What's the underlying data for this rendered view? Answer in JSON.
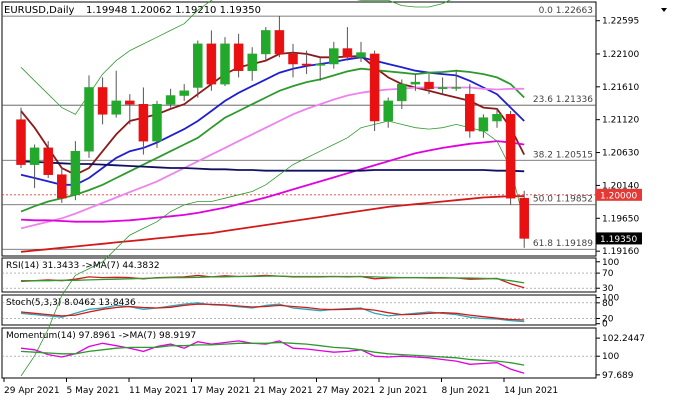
{
  "header": {
    "symbol": "EURUSD,Daily",
    "ohlc": "1.19948 1.20062 1.19210 1.19350"
  },
  "chart_data": {
    "type": "candlestick",
    "price_axis": {
      "range": [
        1.19088,
        1.22874
      ],
      "ticks": [
        "1.22595",
        "1.22100",
        "1.21610",
        "1.21120",
        "1.20630",
        "1.20140",
        "1.19650",
        "1.19160"
      ]
    },
    "date_labels": [
      "29 Apr 2021",
      "5 May 2021",
      "11 May 2021",
      "17 May 2021",
      "21 May 2021",
      "27 May 2021",
      "2 Jun 2021",
      "8 Jun 2021",
      "14 Jun 2021"
    ],
    "price_tags": [
      {
        "label": "1.20000",
        "value": 1.2,
        "color": "#e53935"
      },
      {
        "label": "1.19350",
        "value": 1.1935,
        "color": "#000000"
      }
    ],
    "fibonacci": [
      {
        "label": "0.0 1.22663",
        "value": 1.22663
      },
      {
        "label": "23.6 1.21336",
        "value": 1.21336
      },
      {
        "label": "38.2 1.20515",
        "value": 1.20515
      },
      {
        "label": "50.0 1.19852",
        "value": 1.19852
      },
      {
        "label": "61.8 1.19189",
        "value": 1.19189
      }
    ],
    "candles": [
      {
        "o": 1.2112,
        "h": 1.213,
        "l": 1.204,
        "c": 1.2045
      },
      {
        "o": 1.2045,
        "h": 1.2075,
        "l": 1.201,
        "c": 1.207
      },
      {
        "o": 1.207,
        "h": 1.208,
        "l": 1.2025,
        "c": 1.203
      },
      {
        "o": 1.203,
        "h": 1.204,
        "l": 1.1988,
        "c": 1.1995
      },
      {
        "o": 1.2,
        "h": 1.208,
        "l": 1.1992,
        "c": 1.2065
      },
      {
        "o": 1.2065,
        "h": 1.2178,
        "l": 1.2055,
        "c": 1.216
      },
      {
        "o": 1.216,
        "h": 1.2175,
        "l": 1.2105,
        "c": 1.212
      },
      {
        "o": 1.212,
        "h": 1.2185,
        "l": 1.2115,
        "c": 1.214
      },
      {
        "o": 1.214,
        "h": 1.215,
        "l": 1.2105,
        "c": 1.2135
      },
      {
        "o": 1.2135,
        "h": 1.216,
        "l": 1.206,
        "c": 1.208
      },
      {
        "o": 1.208,
        "h": 1.214,
        "l": 1.207,
        "c": 1.2135
      },
      {
        "o": 1.2135,
        "h": 1.2158,
        "l": 1.213,
        "c": 1.2148
      },
      {
        "o": 1.2148,
        "h": 1.2165,
        "l": 1.214,
        "c": 1.2155
      },
      {
        "o": 1.216,
        "h": 1.223,
        "l": 1.2145,
        "c": 1.2225
      },
      {
        "o": 1.2225,
        "h": 1.2245,
        "l": 1.2155,
        "c": 1.2165
      },
      {
        "o": 1.2165,
        "h": 1.2235,
        "l": 1.2162,
        "c": 1.2225
      },
      {
        "o": 1.2225,
        "h": 1.224,
        "l": 1.2175,
        "c": 1.2185
      },
      {
        "o": 1.2185,
        "h": 1.222,
        "l": 1.217,
        "c": 1.221
      },
      {
        "o": 1.221,
        "h": 1.225,
        "l": 1.22,
        "c": 1.2245
      },
      {
        "o": 1.2245,
        "h": 1.2266,
        "l": 1.2205,
        "c": 1.221
      },
      {
        "o": 1.221,
        "h": 1.2225,
        "l": 1.2175,
        "c": 1.2195
      },
      {
        "o": 1.2195,
        "h": 1.2215,
        "l": 1.218,
        "c": 1.2193
      },
      {
        "o": 1.2193,
        "h": 1.2205,
        "l": 1.217,
        "c": 1.2195
      },
      {
        "o": 1.2195,
        "h": 1.2228,
        "l": 1.2188,
        "c": 1.2218
      },
      {
        "o": 1.2218,
        "h": 1.225,
        "l": 1.22,
        "c": 1.2205
      },
      {
        "o": 1.2205,
        "h": 1.2228,
        "l": 1.2198,
        "c": 1.2212
      },
      {
        "o": 1.221,
        "h": 1.2215,
        "l": 1.2095,
        "c": 1.211
      },
      {
        "o": 1.211,
        "h": 1.2145,
        "l": 1.21,
        "c": 1.214
      },
      {
        "o": 1.214,
        "h": 1.2172,
        "l": 1.2128,
        "c": 1.2165
      },
      {
        "o": 1.2165,
        "h": 1.218,
        "l": 1.2155,
        "c": 1.2168
      },
      {
        "o": 1.2168,
        "h": 1.218,
        "l": 1.215,
        "c": 1.2158
      },
      {
        "o": 1.2158,
        "h": 1.2175,
        "l": 1.215,
        "c": 1.216
      },
      {
        "o": 1.216,
        "h": 1.2185,
        "l": 1.2155,
        "c": 1.216
      },
      {
        "o": 1.215,
        "h": 1.2165,
        "l": 1.2085,
        "c": 1.2095
      },
      {
        "o": 1.2095,
        "h": 1.212,
        "l": 1.2085,
        "c": 1.2115
      },
      {
        "o": 1.211,
        "h": 1.2128,
        "l": 1.21,
        "c": 1.212
      },
      {
        "o": 1.212,
        "h": 1.2125,
        "l": 1.1985,
        "c": 1.1995
      },
      {
        "o": 1.1995,
        "h": 1.2006,
        "l": 1.1921,
        "c": 1.1935
      }
    ],
    "moving_averages": [
      {
        "name": "ma-brown",
        "color": "#8b1a1a",
        "values": [
          1.2125,
          1.21,
          1.207,
          1.204,
          1.203,
          1.204,
          1.2065,
          1.209,
          1.211,
          1.2115,
          1.212,
          1.2128,
          1.2135,
          1.215,
          1.2165,
          1.218,
          1.219,
          1.2195,
          1.22,
          1.221,
          1.2212,
          1.221,
          1.2205,
          1.2205,
          1.2206,
          1.2207,
          1.219,
          1.2175,
          1.2165,
          1.216,
          1.2155,
          1.215,
          1.2145,
          1.214,
          1.213,
          1.2128,
          1.21,
          1.206
        ]
      },
      {
        "name": "ma-blue",
        "color": "#1f1fd0",
        "values": [
          1.203,
          1.2025,
          1.202,
          1.2015,
          1.2015,
          1.2025,
          1.204,
          1.2055,
          1.2065,
          1.207,
          1.2078,
          1.2088,
          1.2098,
          1.211,
          1.2125,
          1.214,
          1.2152,
          1.2162,
          1.2172,
          1.2182,
          1.2188,
          1.2192,
          1.2195,
          1.2198,
          1.2202,
          1.2205,
          1.22,
          1.2195,
          1.219,
          1.2185,
          1.2182,
          1.218,
          1.2178,
          1.217,
          1.216,
          1.215,
          1.213,
          1.211
        ]
      },
      {
        "name": "ma-green",
        "color": "#2e9a2e",
        "values": [
          1.1975,
          1.1983,
          1.199,
          1.1995,
          1.2,
          1.2007,
          1.2015,
          1.2025,
          1.2035,
          1.2045,
          1.2055,
          1.2065,
          1.2075,
          1.2085,
          1.21,
          1.2115,
          1.2125,
          1.2135,
          1.2145,
          1.2155,
          1.2162,
          1.2168,
          1.2172,
          1.2178,
          1.2184,
          1.2188,
          1.2186,
          1.2184,
          1.2182,
          1.218,
          1.2182,
          1.2183,
          1.2185,
          1.2183,
          1.218,
          1.2175,
          1.2165,
          1.2145
        ]
      },
      {
        "name": "ma-violet",
        "color": "#ee82ee",
        "values": [
          1.195,
          1.1955,
          1.196,
          1.1965,
          1.1972,
          1.198,
          1.1988,
          1.1996,
          1.2004,
          1.2012,
          1.202,
          1.203,
          1.204,
          1.205,
          1.206,
          1.207,
          1.208,
          1.209,
          1.21,
          1.211,
          1.212,
          1.2128,
          1.2135,
          1.2142,
          1.2148,
          1.2152,
          1.2155,
          1.2157,
          1.2158,
          1.216,
          1.216,
          1.216,
          1.216,
          1.216,
          1.2158,
          1.2157,
          1.2158,
          1.2158
        ]
      },
      {
        "name": "ma-magenta",
        "color": "#e000e0",
        "values": [
          1.1963,
          1.1962,
          1.1962,
          1.1961,
          1.196,
          1.196,
          1.196,
          1.1961,
          1.1962,
          1.1964,
          1.1966,
          1.1968,
          1.197,
          1.1973,
          1.1977,
          1.1981,
          1.1986,
          1.1991,
          1.1996,
          1.2002,
          1.2008,
          1.2014,
          1.202,
          1.2026,
          1.2032,
          1.2038,
          1.2044,
          1.205,
          1.2056,
          1.2062,
          1.2066,
          1.207,
          1.2073,
          1.2076,
          1.2078,
          1.208,
          1.2078,
          1.2075
        ]
      },
      {
        "name": "ma-navy",
        "color": "#101060",
        "values": [
          1.205,
          1.2049,
          1.2048,
          1.2047,
          1.2046,
          1.2046,
          1.2045,
          1.2044,
          1.2043,
          1.2042,
          1.2041,
          1.204,
          1.204,
          1.2039,
          1.2038,
          1.2038,
          1.2037,
          1.2037,
          1.2036,
          1.2036,
          1.2036,
          1.2036,
          1.2036,
          1.2036,
          1.2036,
          1.2036,
          1.2037,
          1.2037,
          1.2037,
          1.2037,
          1.2037,
          1.2037,
          1.2037,
          1.2037,
          1.2037,
          1.2036,
          1.2036,
          1.2035
        ]
      },
      {
        "name": "ma-red",
        "color": "#d21a1a",
        "values": [
          1.1915,
          1.1917,
          1.1919,
          1.1921,
          1.1923,
          1.1925,
          1.1927,
          1.1929,
          1.1931,
          1.1933,
          1.1935,
          1.1937,
          1.1939,
          1.1941,
          1.1943,
          1.1946,
          1.1949,
          1.1952,
          1.1955,
          1.1958,
          1.1961,
          1.1964,
          1.1967,
          1.197,
          1.1973,
          1.1976,
          1.1979,
          1.1982,
          1.1984,
          1.1986,
          1.1988,
          1.199,
          1.1992,
          1.1994,
          1.1996,
          1.1997,
          1.1998,
          1.1998
        ]
      },
      {
        "name": "bb-upper",
        "color": "#2e9a2e",
        "values": [
          1.219,
          1.217,
          1.215,
          1.213,
          1.212,
          1.215,
          1.218,
          1.22,
          1.2215,
          1.2225,
          1.2235,
          1.2245,
          1.2255,
          1.2275,
          1.229,
          1.23,
          1.2305,
          1.2305,
          1.2305,
          1.23,
          1.23,
          1.2298,
          1.2295,
          1.2295,
          1.2293,
          1.229,
          1.229,
          1.229,
          1.2282,
          1.228,
          1.228,
          1.2285,
          1.2295,
          1.23,
          1.23,
          1.2295,
          1.23,
          1.233
        ]
      },
      {
        "name": "bb-lower",
        "color": "#2e9a2e",
        "values": [
          1.173,
          1.176,
          1.18,
          1.185,
          1.188,
          1.189,
          1.19,
          1.192,
          1.194,
          1.195,
          1.196,
          1.1975,
          1.1985,
          1.199,
          1.199,
          1.1995,
          1.2,
          1.2005,
          1.2015,
          1.203,
          1.2045,
          1.2055,
          1.2065,
          1.2075,
          1.2085,
          1.21,
          1.2105,
          1.211,
          1.2105,
          1.21,
          1.2098,
          1.21,
          1.2105,
          1.21,
          1.2095,
          1.208,
          1.204,
          1.196
        ]
      }
    ],
    "panels": [
      {
        "name": "rsi",
        "label": "RSI(14) 31.3433  ->MA(7) 44.3832",
        "range": [
          20,
          110
        ],
        "ticks": [
          "100",
          "70",
          "30"
        ],
        "levels": [
          70,
          30
        ],
        "series": [
          {
            "color": "#d21a1a",
            "values": [
              48,
              50,
              52,
              50,
              54,
              60,
              58,
              59,
              58,
              55,
              58,
              59,
              60,
              64,
              60,
              63,
              61,
              62,
              64,
              62,
              60,
              60,
              60,
              61,
              60,
              61,
              55,
              57,
              58,
              58,
              57,
              57,
              57,
              54,
              55,
              56,
              42,
              31
            ]
          },
          {
            "color": "#2e9a2e",
            "values": [
              50,
              50,
              50,
              51,
              51,
              52,
              53,
              54,
              55,
              56,
              57,
              58,
              58,
              59,
              60,
              60,
              61,
              61,
              62,
              62,
              61,
              61,
              61,
              61,
              61,
              61,
              60,
              59,
              58,
              58,
              58,
              58,
              57,
              57,
              56,
              55,
              50,
              44
            ]
          }
        ]
      },
      {
        "name": "stoch",
        "label": "Stoch(5,3,3) 8.0462 13.8436",
        "range": [
          -5,
          110
        ],
        "ticks": [
          "100",
          "80",
          "20",
          "0"
        ],
        "levels": [
          80,
          20
        ],
        "series": [
          {
            "color": "#2aa7b6",
            "values": [
              40,
              35,
              30,
              25,
              40,
              55,
              60,
              70,
              65,
              55,
              60,
              68,
              75,
              80,
              72,
              70,
              65,
              60,
              70,
              75,
              60,
              55,
              50,
              55,
              58,
              60,
              40,
              30,
              35,
              40,
              45,
              40,
              35,
              25,
              20,
              18,
              12,
              8
            ]
          },
          {
            "color": "#d21a1a",
            "values": [
              45,
              40,
              35,
              30,
              33,
              45,
              55,
              62,
              66,
              62,
              60,
              63,
              70,
              75,
              74,
              72,
              68,
              64,
              66,
              70,
              66,
              62,
              56,
              54,
              55,
              57,
              52,
              42,
              35,
              36,
              40,
              42,
              40,
              33,
              27,
              21,
              16,
              14
            ]
          }
        ]
      },
      {
        "name": "momentum",
        "label": "Momentum(14) 97.8961  ->MA(7) 98.9197",
        "range": [
          97.3,
          103.5
        ],
        "ticks": [
          "102.2447",
          "100",
          "97.689"
        ],
        "levels": [
          100
        ],
        "series": [
          {
            "color": "#e000e0",
            "values": [
              101.0,
              100.8,
              100.2,
              99.9,
              100.3,
              101.2,
              101.6,
              101.3,
              101.0,
              100.6,
              101.2,
              101.5,
              101.0,
              101.8,
              101.5,
              101.7,
              101.9,
              101.6,
              101.5,
              101.9,
              101.0,
              100.9,
              100.7,
              100.5,
              100.6,
              100.8,
              100.0,
              99.9,
              100.0,
              99.9,
              99.8,
              99.6,
              99.4,
              99.0,
              99.1,
              99.2,
              98.4,
              97.9
            ]
          },
          {
            "color": "#2e9a2e",
            "values": [
              100.6,
              100.5,
              100.4,
              100.3,
              100.3,
              100.6,
              100.8,
              101.0,
              101.1,
              101.1,
              101.1,
              101.3,
              101.3,
              101.4,
              101.4,
              101.5,
              101.6,
              101.6,
              101.6,
              101.7,
              101.6,
              101.5,
              101.3,
              101.1,
              101.0,
              100.8,
              100.5,
              100.3,
              100.2,
              100.1,
              100.0,
              99.9,
              99.8,
              99.6,
              99.5,
              99.4,
              99.2,
              98.9
            ]
          }
        ]
      }
    ]
  }
}
